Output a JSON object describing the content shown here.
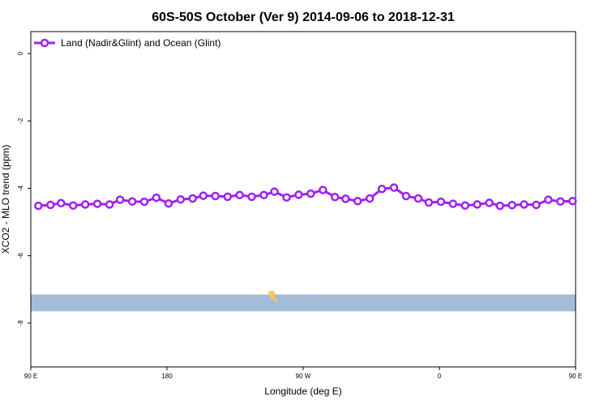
{
  "chart_data": {
    "type": "line",
    "title": "60S-50S October (Ver 9)   2014-09-06 to 2018-12-31",
    "xlabel": "Longitude (deg E)",
    "ylabel": "XCO2 - MLO trend (ppm)",
    "xlim": [
      90,
      450
    ],
    "ylim": [
      -9.3,
      0.65
    ],
    "x_ticks": [
      {
        "value": 90,
        "label": "90 E"
      },
      {
        "value": 180,
        "label": "180"
      },
      {
        "value": 270,
        "label": "90 W"
      },
      {
        "value": 360,
        "label": "0"
      },
      {
        "value": 450,
        "label": "90 E"
      }
    ],
    "x_ticks_secondary": [
      {
        "value": 540,
        "label": "180"
      }
    ],
    "y_ticks": [
      0,
      -2,
      -4,
      -6,
      -8
    ],
    "grid": false,
    "legend": {
      "position": "top-left",
      "entries": [
        "Land (Nadir&Glint) and Ocean (Glint)"
      ]
    },
    "series": [
      {
        "name": "Land (Nadir&Glint) and Ocean (Glint)",
        "color": "#a020f0",
        "x": [
          95,
          103,
          110,
          118,
          126,
          134,
          142,
          149,
          157,
          165,
          173,
          181,
          189,
          197,
          204,
          212,
          220,
          228,
          236,
          244,
          251,
          259,
          267,
          275,
          283,
          291,
          298,
          306,
          314,
          322,
          330,
          338,
          346,
          353,
          361,
          369,
          377,
          385,
          393,
          400,
          408,
          416,
          424,
          432,
          440,
          448,
          455,
          463,
          471,
          479,
          487,
          495,
          502,
          510,
          518,
          526,
          534
        ],
        "y": [
          -4.52,
          -4.49,
          -4.44,
          -4.51,
          -4.48,
          -4.46,
          -4.48,
          -4.34,
          -4.39,
          -4.4,
          -4.28,
          -4.45,
          -4.33,
          -4.3,
          -4.22,
          -4.23,
          -4.25,
          -4.2,
          -4.25,
          -4.2,
          -4.1,
          -4.27,
          -4.19,
          -4.16,
          -4.05,
          -4.26,
          -4.31,
          -4.38,
          -4.3,
          -4.02,
          -3.98,
          -4.23,
          -4.3,
          -4.42,
          -4.4,
          -4.46,
          -4.51,
          -4.48,
          -4.43,
          -4.52,
          -4.5,
          -4.48,
          -4.49,
          -4.34,
          -4.39,
          -4.38,
          -4.4,
          -4.42,
          -4.45,
          -4.46,
          -4.44,
          -4.47,
          -4.48,
          -4.47,
          -4.49,
          -4.46,
          -4.48
        ]
      }
    ],
    "map_strip": {
      "y_top": -7.15,
      "y_bottom": -7.65,
      "ocean_color": "#a5bcd9",
      "land_color": "#f2c65e"
    }
  }
}
